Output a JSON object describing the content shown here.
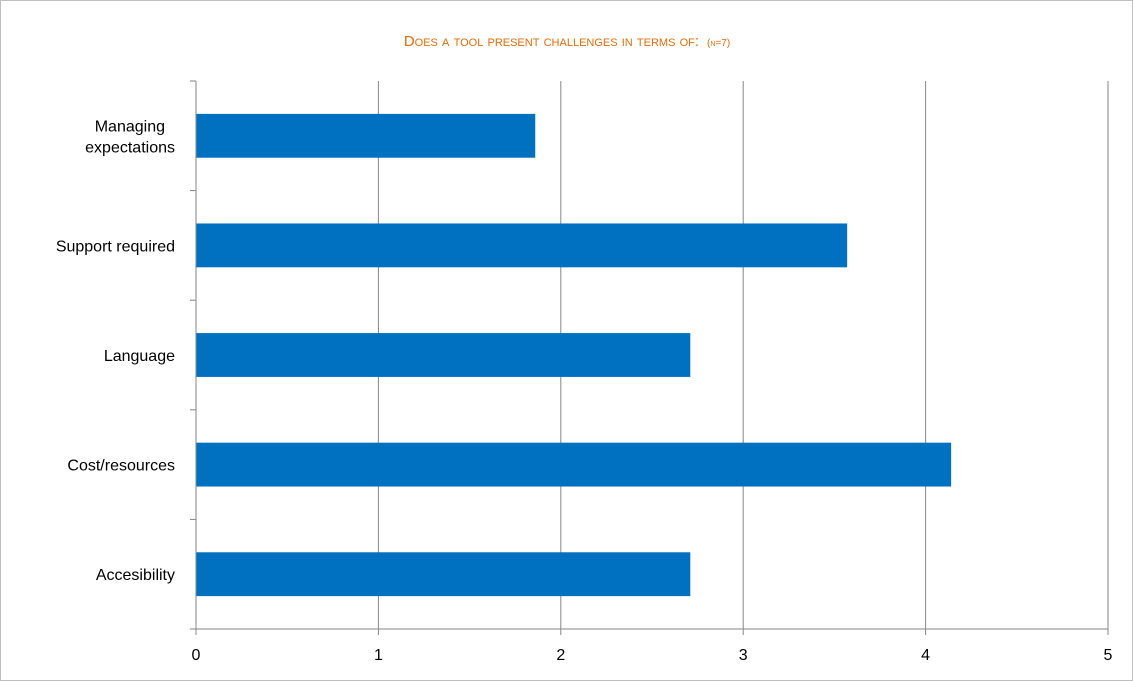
{
  "chart_data": {
    "type": "bar",
    "orientation": "horizontal",
    "title": "Does a tool present challenges in terms of:",
    "subtitle": "(n=7)",
    "categories": [
      "Managing expectations",
      "Support required",
      "Language",
      "Cost/resources",
      "Accesibility"
    ],
    "category_lines": [
      [
        "Managing",
        "expectations"
      ],
      [
        "Support required"
      ],
      [
        "Language"
      ],
      [
        "Cost/resources"
      ],
      [
        "Accesibility"
      ]
    ],
    "values": [
      1.86,
      3.57,
      2.71,
      4.14,
      2.71
    ],
    "xlim": [
      0,
      5
    ],
    "xticks": [
      0,
      1,
      2,
      3,
      4,
      5
    ],
    "xtick_labels": [
      "0",
      "1",
      "2",
      "3",
      "4",
      "5"
    ],
    "xlabel": "",
    "ylabel": "",
    "grid": "vertical",
    "legend": "none",
    "colors": {
      "bar": "#0070c0",
      "title": "#e46c0a",
      "grid": "#868686",
      "axis": "#868686"
    }
  }
}
